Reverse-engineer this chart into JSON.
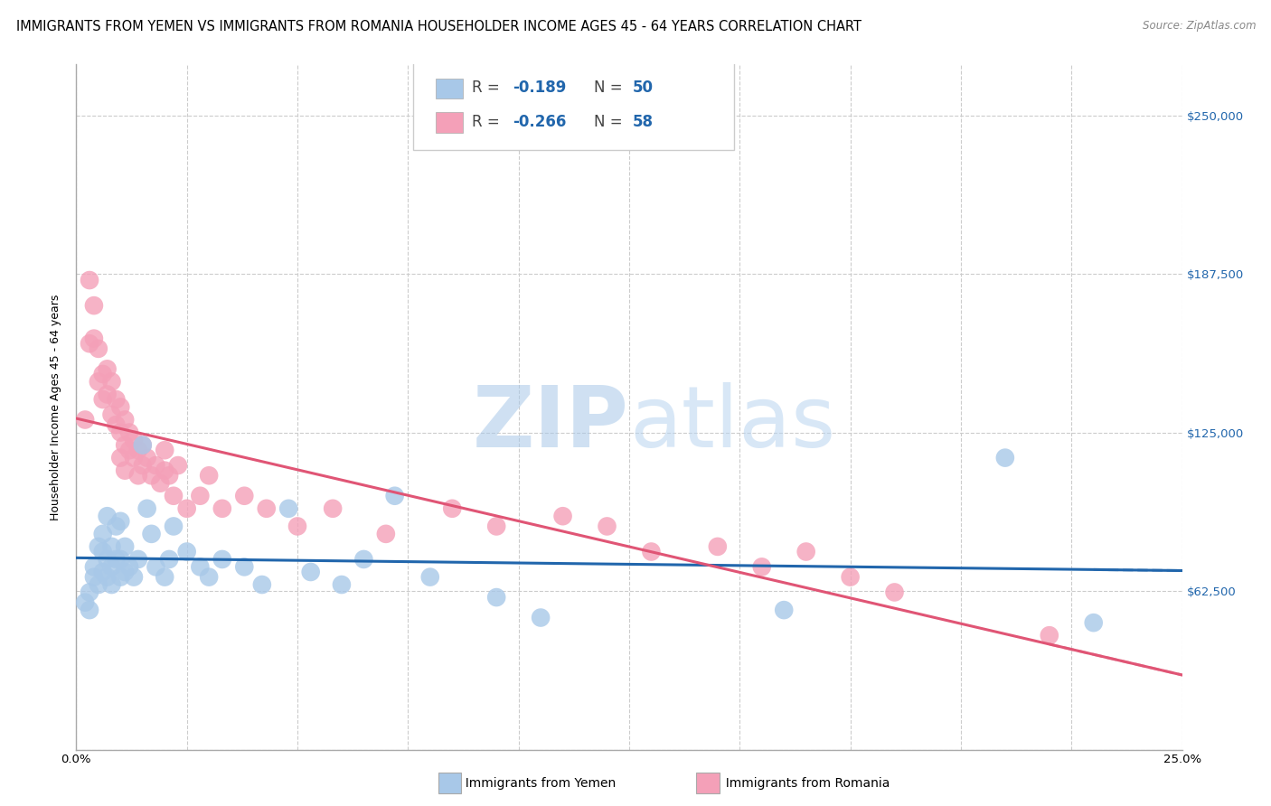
{
  "title": "IMMIGRANTS FROM YEMEN VS IMMIGRANTS FROM ROMANIA HOUSEHOLDER INCOME AGES 45 - 64 YEARS CORRELATION CHART",
  "source": "Source: ZipAtlas.com",
  "ylabel": "Householder Income Ages 45 - 64 years",
  "xlim": [
    0.0,
    0.25
  ],
  "ylim": [
    0,
    270000
  ],
  "yticks": [
    0,
    62500,
    125000,
    187500,
    250000
  ],
  "ytick_labels": [
    "",
    "$62,500",
    "$125,000",
    "$187,500",
    "$250,000"
  ],
  "xticks": [
    0.0,
    0.025,
    0.05,
    0.075,
    0.1,
    0.125,
    0.15,
    0.175,
    0.2,
    0.225,
    0.25
  ],
  "xtick_labels_show": [
    "0.0%",
    "",
    "",
    "",
    "",
    "",
    "",
    "",
    "",
    "",
    "25.0%"
  ],
  "yemen_color": "#A8C8E8",
  "romania_color": "#F4A0B8",
  "yemen_line_color": "#2166AC",
  "romania_line_color": "#E05575",
  "yemen_R": -0.189,
  "yemen_N": 50,
  "romania_R": -0.266,
  "romania_N": 58,
  "background_color": "#FFFFFF",
  "grid_color": "#CCCCCC",
  "watermark_zip": "ZIP",
  "watermark_atlas": "atlas",
  "legend_text_color": "#2166AC",
  "legend_r_label_color": "#333333",
  "yemen_x": [
    0.002,
    0.003,
    0.003,
    0.004,
    0.004,
    0.005,
    0.005,
    0.006,
    0.006,
    0.006,
    0.007,
    0.007,
    0.007,
    0.008,
    0.008,
    0.008,
    0.009,
    0.009,
    0.01,
    0.01,
    0.01,
    0.011,
    0.011,
    0.012,
    0.013,
    0.014,
    0.015,
    0.016,
    0.017,
    0.018,
    0.02,
    0.021,
    0.022,
    0.025,
    0.028,
    0.03,
    0.033,
    0.038,
    0.042,
    0.048,
    0.053,
    0.06,
    0.065,
    0.072,
    0.08,
    0.095,
    0.105,
    0.16,
    0.21,
    0.23
  ],
  "yemen_y": [
    58000,
    62000,
    55000,
    68000,
    72000,
    80000,
    65000,
    78000,
    70000,
    85000,
    92000,
    75000,
    68000,
    80000,
    72000,
    65000,
    88000,
    75000,
    90000,
    68000,
    75000,
    70000,
    80000,
    72000,
    68000,
    75000,
    120000,
    95000,
    85000,
    72000,
    68000,
    75000,
    88000,
    78000,
    72000,
    68000,
    75000,
    72000,
    65000,
    95000,
    70000,
    65000,
    75000,
    100000,
    68000,
    60000,
    52000,
    55000,
    115000,
    50000
  ],
  "romania_x": [
    0.002,
    0.003,
    0.003,
    0.004,
    0.004,
    0.005,
    0.005,
    0.006,
    0.006,
    0.007,
    0.007,
    0.008,
    0.008,
    0.009,
    0.009,
    0.01,
    0.01,
    0.01,
    0.011,
    0.011,
    0.011,
    0.012,
    0.012,
    0.013,
    0.013,
    0.014,
    0.014,
    0.015,
    0.015,
    0.016,
    0.017,
    0.018,
    0.019,
    0.02,
    0.02,
    0.021,
    0.022,
    0.023,
    0.025,
    0.028,
    0.03,
    0.033,
    0.038,
    0.043,
    0.05,
    0.058,
    0.07,
    0.085,
    0.095,
    0.11,
    0.12,
    0.13,
    0.145,
    0.155,
    0.165,
    0.175,
    0.185,
    0.22
  ],
  "romania_y": [
    130000,
    185000,
    160000,
    175000,
    162000,
    158000,
    145000,
    148000,
    138000,
    150000,
    140000,
    145000,
    132000,
    138000,
    128000,
    135000,
    125000,
    115000,
    130000,
    120000,
    110000,
    125000,
    118000,
    115000,
    122000,
    118000,
    108000,
    120000,
    112000,
    115000,
    108000,
    112000,
    105000,
    110000,
    118000,
    108000,
    100000,
    112000,
    95000,
    100000,
    108000,
    95000,
    100000,
    95000,
    88000,
    95000,
    85000,
    95000,
    88000,
    92000,
    88000,
    78000,
    80000,
    72000,
    78000,
    68000,
    62000,
    45000
  ],
  "title_fontsize": 10.5,
  "axis_label_fontsize": 9,
  "tick_fontsize": 9.5,
  "legend_fontsize": 12
}
